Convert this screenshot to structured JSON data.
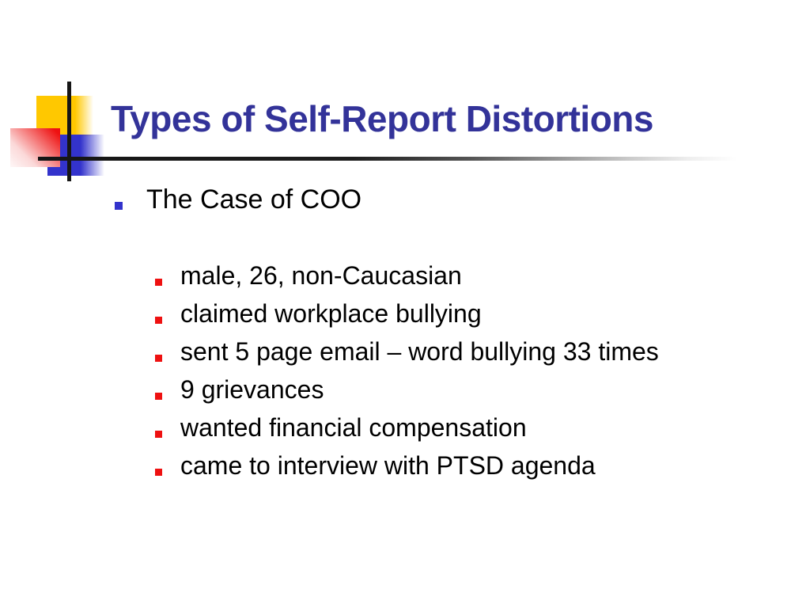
{
  "slide": {
    "title": "Types of Self-Report Distortions",
    "bullets": {
      "level1": "The Case of COO",
      "level2": [
        "male, 26, non-Caucasian",
        "claimed workplace bullying",
        "sent 5 page email – word bullying 33 times",
        "9 grievances",
        "wanted financial compensation",
        "came to interview with PTSD agenda"
      ]
    },
    "colors": {
      "title_text": "#333399",
      "body_text": "#000000",
      "level1_bullet": "#3333cc",
      "level2_bullet": "#ee1111",
      "accent_yellow": "#ffc800",
      "accent_blue": "#3333cc",
      "accent_red": "#ee1111",
      "rule_dark": "#151515"
    }
  }
}
